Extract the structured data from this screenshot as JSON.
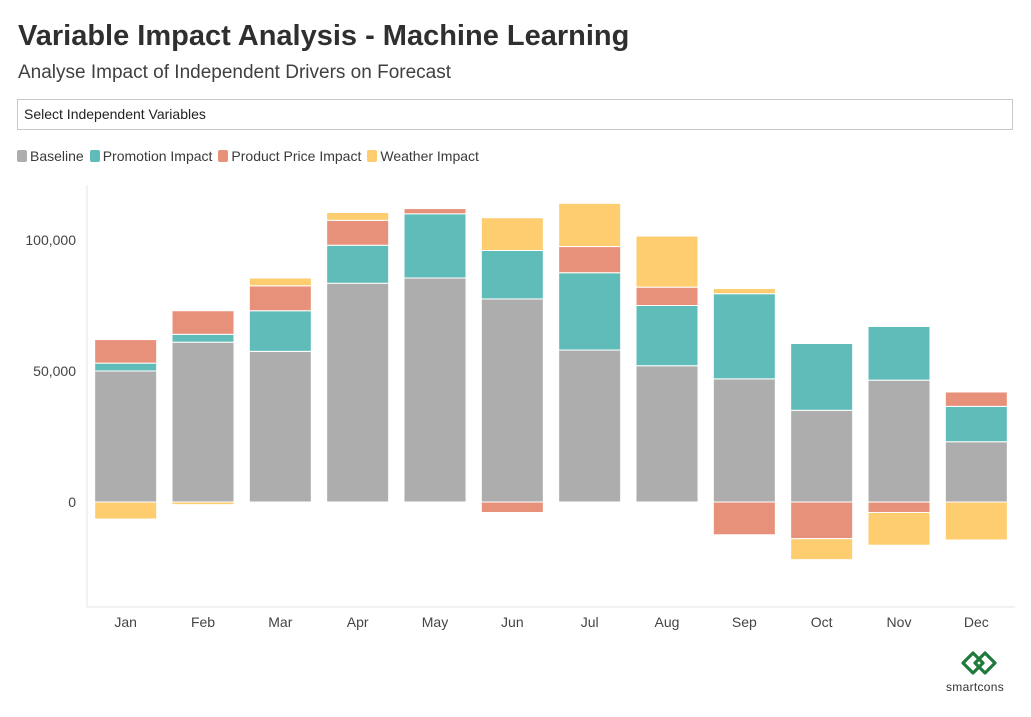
{
  "header": {
    "title": "Variable Impact Analysis - Machine Learning",
    "subtitle": "Analyse Impact of Independent Drivers on Forecast"
  },
  "select": {
    "label": "Select Independent Variables"
  },
  "brand": {
    "name": "smartcons",
    "color": "#1f7a3c"
  },
  "chart_data": {
    "type": "bar",
    "stacked": true,
    "categories": [
      "Jan",
      "Feb",
      "Mar",
      "Apr",
      "May",
      "Jun",
      "Jul",
      "Aug",
      "Sep",
      "Oct",
      "Nov",
      "Dec"
    ],
    "series": [
      {
        "name": "Baseline",
        "color": "#adadad",
        "values": [
          50000,
          61000,
          57500,
          83500,
          85500,
          77500,
          58000,
          52000,
          47000,
          35000,
          46500,
          23000
        ]
      },
      {
        "name": "Promotion Impact",
        "color": "#5fbcb8",
        "values": [
          3000,
          3000,
          15500,
          14500,
          24500,
          18500,
          29500,
          23000,
          32500,
          25500,
          20500,
          13500
        ]
      },
      {
        "name": "Product Price Impact",
        "color": "#e8917a",
        "values": [
          9000,
          9000,
          9500,
          9500,
          2000,
          -4000,
          10000,
          7000,
          -12500,
          -14000,
          -4000,
          5500
        ]
      },
      {
        "name": "Weather Impact",
        "color": "#fdcd70",
        "values": [
          -6500,
          -1000,
          3000,
          3000,
          0,
          12500,
          16500,
          19500,
          2000,
          -8000,
          -12500,
          -14500
        ]
      }
    ],
    "ylim": [
      -40000,
      120000
    ],
    "yticks": [
      0,
      50000,
      100000
    ],
    "ytick_labels": [
      "0",
      "50,000",
      "100,000"
    ],
    "legend": "top-left",
    "grid": false
  }
}
